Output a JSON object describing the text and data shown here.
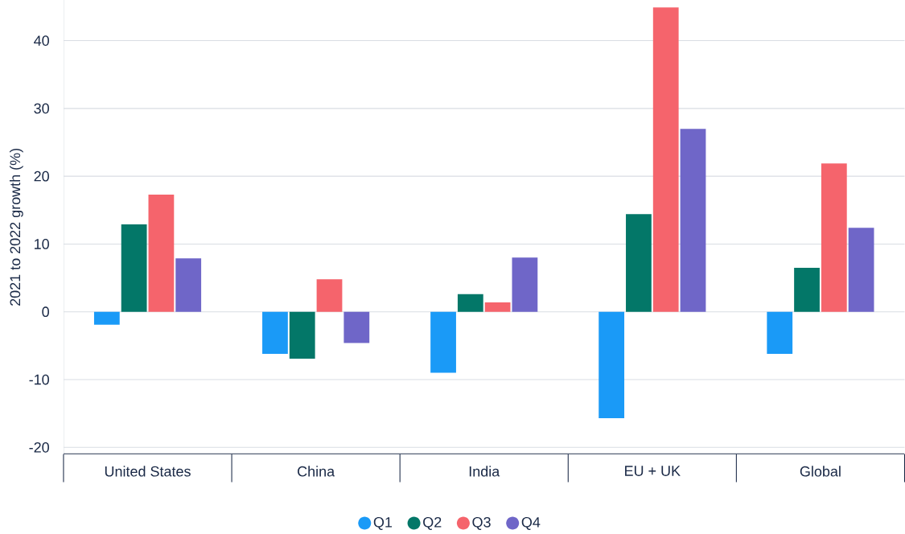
{
  "chart_data": {
    "type": "bar",
    "ylabel": "2021 to 2022 growth (%)",
    "categories": [
      "United States",
      "China",
      "India",
      "EU + UK",
      "Global"
    ],
    "series": [
      {
        "name": "Q1",
        "color": "#1a9af7",
        "values": [
          -1.9,
          -6.2,
          -9.0,
          -15.7,
          -6.2
        ]
      },
      {
        "name": "Q2",
        "color": "#037768",
        "values": [
          12.9,
          -6.9,
          2.6,
          14.4,
          6.5
        ]
      },
      {
        "name": "Q3",
        "color": "#f5646c",
        "values": [
          17.3,
          4.8,
          1.4,
          44.9,
          21.9
        ]
      },
      {
        "name": "Q4",
        "color": "#6f66c8",
        "values": [
          7.9,
          -4.6,
          8.0,
          27.0,
          12.4
        ]
      }
    ],
    "ylim": [
      -21,
      46
    ],
    "yticks": [
      -20,
      -10,
      0,
      10,
      20,
      30,
      40
    ],
    "grid": "y",
    "legend": "bottom"
  }
}
